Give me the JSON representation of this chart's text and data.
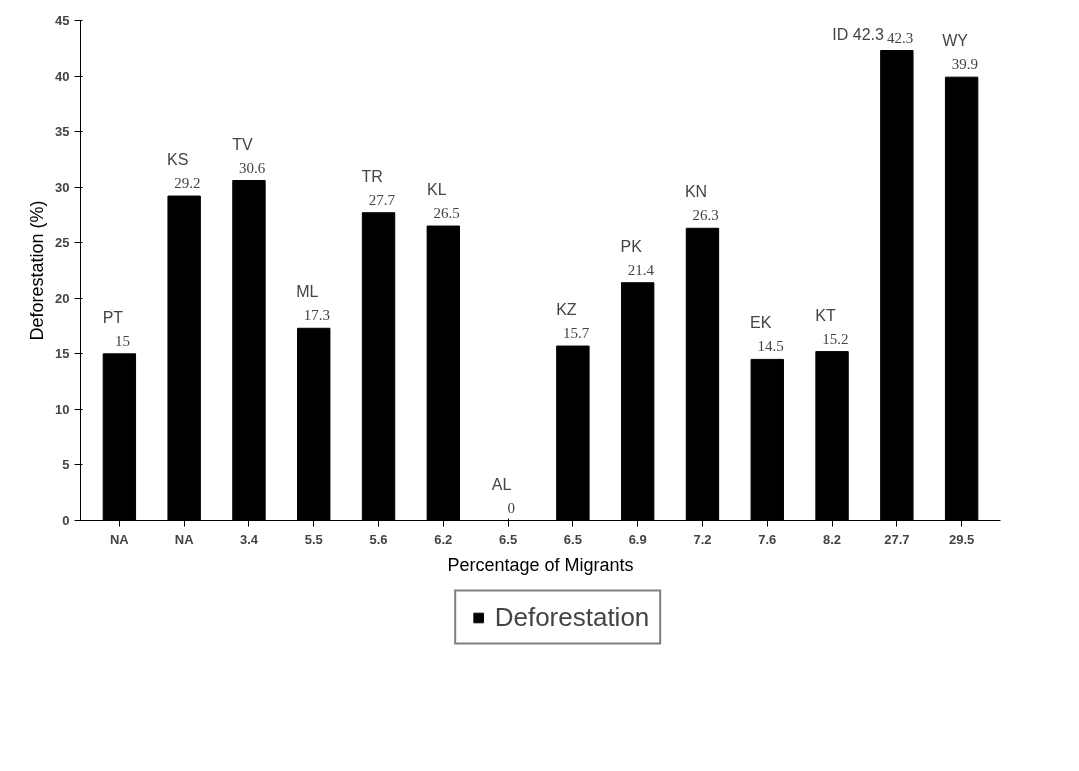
{
  "chart_data": {
    "type": "bar",
    "xlabel": "Percentage of Migrants",
    "ylabel": "Deforestation (%)",
    "categories": [
      "NA",
      "NA",
      "3.4",
      "5.5",
      "5.6",
      "6.2",
      "6.5",
      "6.5",
      "6.9",
      "7.2",
      "7.6",
      "8.2",
      "27.7",
      "29.5"
    ],
    "series": [
      {
        "name": "Deforestation",
        "color": "#000000",
        "values": [
          15,
          29.2,
          30.6,
          17.3,
          27.7,
          26.5,
          0,
          15.7,
          21.4,
          26.3,
          14.5,
          15.2,
          42.3,
          39.9
        ],
        "value_labels": [
          "15",
          "29.2",
          "30.6",
          "17.3",
          "27.7",
          "26.5",
          "0",
          "15.7",
          "21.4",
          "26.3",
          "14.5",
          "15.2",
          "42.3",
          "39.9"
        ]
      }
    ],
    "annotations": [
      "PT",
      "KS",
      "TV",
      "ML",
      "TR",
      "KL",
      "AL",
      "KZ",
      "PK",
      "KN",
      "EK",
      "KT",
      "ID 42.3",
      "WY"
    ],
    "ylim": [
      0,
      45
    ],
    "yticks": [
      0,
      5,
      10,
      15,
      20,
      25,
      30,
      35,
      40,
      45
    ],
    "grid": false,
    "legend": "bottom"
  }
}
